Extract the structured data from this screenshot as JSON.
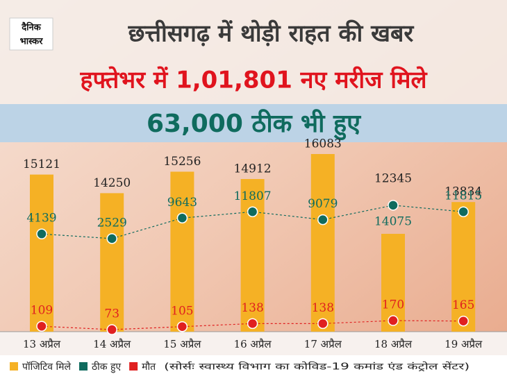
{
  "brand": {
    "line1": "दैनिक",
    "line2": "भास्कर"
  },
  "chart_data": {
    "type": "bar",
    "title": "छत्तीसगढ़ में थोड़ी राहत की खबर",
    "subtitle": "हफ्तेभर में 1,01,801 नए मरीज मिले",
    "annotation": "63,000 ठीक भी हुए",
    "source": "(सोर्सः स्वास्थ्य विभाग का कोविड-19 कमांड एंड कंट्रोल सेंटर)",
    "categories": [
      "13 अप्रैल",
      "14 अप्रैल",
      "15 अप्रैल",
      "16 अप्रैल",
      "17 अप्रैल",
      "18 अप्रैल",
      "19 अप्रैल"
    ],
    "ylim": [
      7763,
      16798
    ],
    "y2lim": [
      -29700,
      37100
    ],
    "y3lim": [
      51,
      2125
    ],
    "series": [
      {
        "name": "पॉजिटिव मिले",
        "color": "#f5b125",
        "values": [
          15121,
          14250,
          15256,
          14912,
          16083,
          12345,
          13834
        ]
      },
      {
        "name": "ठीक हुए",
        "color": "#0f6b5e",
        "axis": "y2",
        "values": [
          4139,
          2529,
          9643,
          11807,
          9079,
          14075,
          11815
        ]
      },
      {
        "name": "मौत",
        "color": "#e02020",
        "axis": "y3",
        "values": [
          109,
          73,
          105,
          138,
          138,
          170,
          165
        ]
      }
    ]
  }
}
